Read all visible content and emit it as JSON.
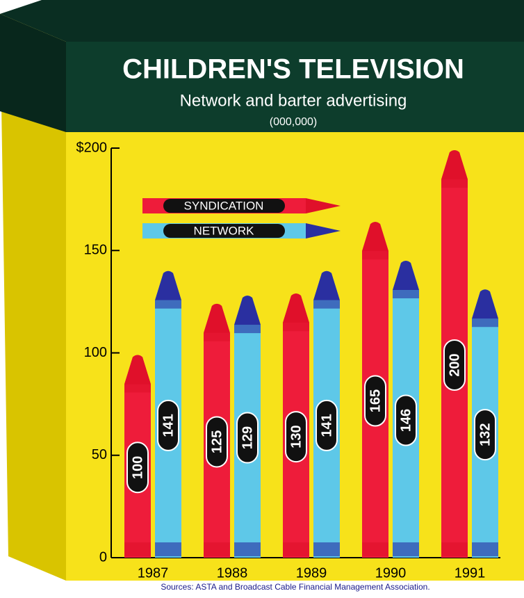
{
  "chart_data": {
    "type": "crayon-bar",
    "title": "CHILDREN'S TELEVISION",
    "subtitle": "Network and barter advertising",
    "unit": "(000,000)",
    "source": "Sources: ASTA and Broadcast Cable Financial Management Association.",
    "categories": [
      "1987",
      "1988",
      "1989",
      "1990",
      "1991"
    ],
    "series": [
      {
        "name": "SYNDICATION",
        "color": "#ee1c3a",
        "tip_color": "#e0102a",
        "values": [
          100,
          125,
          130,
          165,
          200
        ]
      },
      {
        "name": "NETWORK",
        "color": "#5ec8e8",
        "tip_color": "#2a2fa0",
        "values": [
          141,
          129,
          141,
          146,
          132
        ]
      }
    ],
    "ylim": [
      0,
      200
    ],
    "yticks": [
      0,
      50,
      100,
      150,
      {
        "value": 200,
        "label": "$200"
      }
    ],
    "legend": "upper left"
  }
}
